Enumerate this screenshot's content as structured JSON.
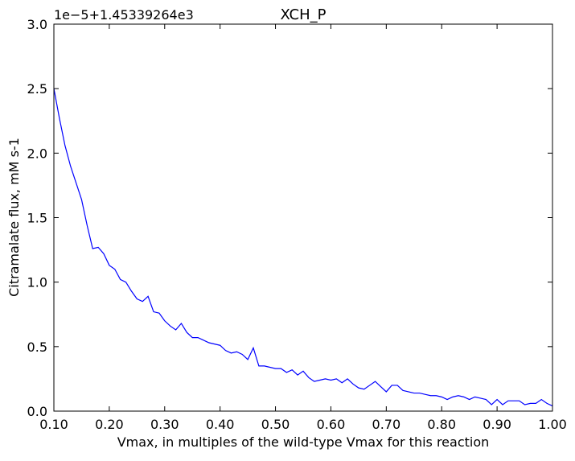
{
  "chart_data": {
    "type": "line",
    "title": "XCH_P",
    "offset_text": "1e−5+1.45339264e3",
    "x_label": "Vmax, in multiples of the wild-type Vmax for this reaction",
    "y_label": "Citramalate flux, mM s-1",
    "x": [
      0.1,
      0.11,
      0.12,
      0.13,
      0.14,
      0.15,
      0.16,
      0.17,
      0.18,
      0.19,
      0.2,
      0.21,
      0.22,
      0.23,
      0.24,
      0.25,
      0.26,
      0.27,
      0.28,
      0.29,
      0.3,
      0.31,
      0.32,
      0.33,
      0.34,
      0.35,
      0.36,
      0.37,
      0.38,
      0.39,
      0.4,
      0.41,
      0.42,
      0.43,
      0.44,
      0.45,
      0.46,
      0.47,
      0.48,
      0.49,
      0.5,
      0.51,
      0.52,
      0.53,
      0.54,
      0.55,
      0.56,
      0.57,
      0.58,
      0.59,
      0.6,
      0.61,
      0.62,
      0.63,
      0.64,
      0.65,
      0.66,
      0.67,
      0.68,
      0.69,
      0.7,
      0.71,
      0.72,
      0.73,
      0.74,
      0.75,
      0.76,
      0.77,
      0.78,
      0.79,
      0.8,
      0.81,
      0.82,
      0.83,
      0.84,
      0.85,
      0.86,
      0.87,
      0.88,
      0.89,
      0.9,
      0.91,
      0.92,
      0.93,
      0.94,
      0.95,
      0.96,
      0.97,
      0.98,
      0.99,
      1.0
    ],
    "series": [
      {
        "name": "XCH_P",
        "color": "#0000ff",
        "values": [
          2.5,
          2.27,
          2.06,
          1.9,
          1.77,
          1.64,
          1.44,
          1.26,
          1.27,
          1.22,
          1.13,
          1.1,
          1.02,
          1.0,
          0.93,
          0.87,
          0.85,
          0.89,
          0.77,
          0.76,
          0.7,
          0.66,
          0.63,
          0.68,
          0.61,
          0.57,
          0.57,
          0.55,
          0.53,
          0.52,
          0.51,
          0.47,
          0.45,
          0.46,
          0.44,
          0.4,
          0.49,
          0.35,
          0.35,
          0.34,
          0.33,
          0.33,
          0.3,
          0.32,
          0.28,
          0.31,
          0.26,
          0.23,
          0.24,
          0.25,
          0.24,
          0.25,
          0.22,
          0.25,
          0.21,
          0.18,
          0.17,
          0.2,
          0.23,
          0.19,
          0.15,
          0.2,
          0.2,
          0.16,
          0.15,
          0.14,
          0.14,
          0.13,
          0.12,
          0.12,
          0.11,
          0.09,
          0.11,
          0.12,
          0.11,
          0.09,
          0.11,
          0.1,
          0.09,
          0.05,
          0.09,
          0.05,
          0.08,
          0.08,
          0.08,
          0.05,
          0.06,
          0.06,
          0.09,
          0.06,
          0.04
        ]
      }
    ],
    "xlim": [
      0.1,
      1.0
    ],
    "xticks": [
      {
        "value": 0.1,
        "label": "0.10"
      },
      {
        "value": 0.2,
        "label": "0.20"
      },
      {
        "value": 0.3,
        "label": "0.30"
      },
      {
        "value": 0.4,
        "label": "0.40"
      },
      {
        "value": 0.5,
        "label": "0.50"
      },
      {
        "value": 0.6,
        "label": "0.60"
      },
      {
        "value": 0.7,
        "label": "0.70"
      },
      {
        "value": 0.8,
        "label": "0.80"
      },
      {
        "value": 0.9,
        "label": "0.90"
      },
      {
        "value": 1.0,
        "label": "1.00"
      }
    ],
    "ylim": [
      0,
      3
    ],
    "yticks": [
      {
        "value": 0,
        "label": "0.0"
      },
      0.5,
      {
        "value": 1,
        "label": "1.0"
      },
      1.5,
      {
        "value": 2,
        "label": "2.0"
      },
      2.5,
      {
        "value": 3,
        "label": "3.0"
      }
    ],
    "grid": false
  }
}
